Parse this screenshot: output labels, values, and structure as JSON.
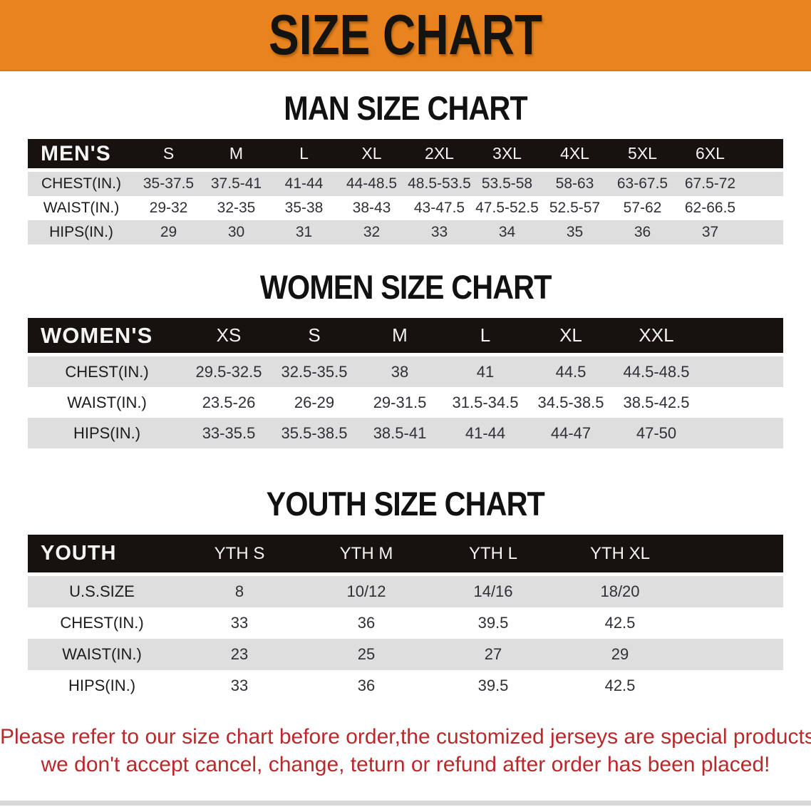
{
  "banner": {
    "title": "SIZE CHART"
  },
  "colors": {
    "banner_bg": "#E8831E",
    "header_bar": "#17120F",
    "row_alt": "#DEDEDE",
    "heading_text": "#111111",
    "disclaimer_text": "#B9292B"
  },
  "sections": [
    {
      "heading": "MAN SIZE CHART",
      "table": {
        "columns": [
          "MEN'S",
          "S",
          "M",
          "L",
          "XL",
          "2XL",
          "3XL",
          "4XL",
          "5XL",
          "6XL"
        ],
        "rows": [
          {
            "label": "CHEST(IN.)",
            "values": [
              "35-37.5",
              "37.5-41",
              "41-44",
              "44-48.5",
              "48.5-53.5",
              "53.5-58",
              "58-63",
              "63-67.5",
              "67.5-72"
            ]
          },
          {
            "label": "WAIST(IN.)",
            "values": [
              "29-32",
              "32-35",
              "35-38",
              "38-43",
              "43-47.5",
              "47.5-52.5",
              "52.5-57",
              "57-62",
              "62-66.5"
            ]
          },
          {
            "label": "HIPS(IN.)",
            "values": [
              "29",
              "30",
              "31",
              "32",
              "33",
              "34",
              "35",
              "36",
              "37"
            ]
          }
        ]
      }
    },
    {
      "heading": "WOMEN SIZE CHART",
      "table": {
        "columns": [
          "WOMEN'S",
          "XS",
          "S",
          "M",
          "L",
          "XL",
          "XXL"
        ],
        "rows": [
          {
            "label": "CHEST(IN.)",
            "values": [
              "29.5-32.5",
              "32.5-35.5",
              "38",
              "41",
              "44.5",
              "44.5-48.5"
            ]
          },
          {
            "label": "WAIST(IN.)",
            "values": [
              "23.5-26",
              "26-29",
              "29-31.5",
              "31.5-34.5",
              "34.5-38.5",
              "38.5-42.5"
            ]
          },
          {
            "label": "HIPS(IN.)",
            "values": [
              "33-35.5",
              "35.5-38.5",
              "38.5-41",
              "41-44",
              "44-47",
              "47-50"
            ]
          }
        ]
      }
    },
    {
      "heading": "YOUTH SIZE CHART",
      "table": {
        "columns": [
          "YOUTH",
          "YTH S",
          "YTH M",
          "YTH L",
          "YTH XL"
        ],
        "rows": [
          {
            "label": "U.S.SIZE",
            "values": [
              "8",
              "10/12",
              "14/16",
              "18/20"
            ]
          },
          {
            "label": "CHEST(IN.)",
            "values": [
              "33",
              "36",
              "39.5",
              "42.5"
            ]
          },
          {
            "label": "WAIST(IN.)",
            "values": [
              "23",
              "25",
              "27",
              "29"
            ]
          },
          {
            "label": "HIPS(IN.)",
            "values": [
              "33",
              "36",
              "39.5",
              "42.5"
            ]
          }
        ]
      }
    }
  ],
  "disclaimer": {
    "lines": [
      "Please refer to our size chart before order,the customized jerseys are special products,",
      "we don't accept cancel, change, teturn or refund after order has been placed!"
    ]
  }
}
